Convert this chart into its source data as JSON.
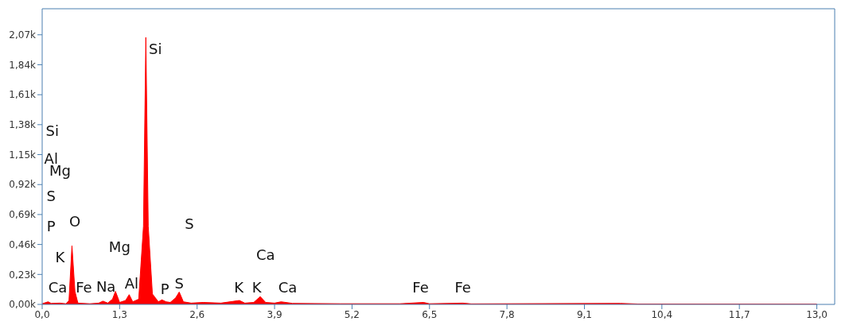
{
  "chart_data": {
    "type": "area",
    "x": [
      0,
      0.1,
      0.15,
      0.3,
      0.4,
      0.45,
      0.5,
      0.55,
      0.6,
      0.8,
      0.95,
      1.02,
      1.1,
      1.18,
      1.23,
      1.3,
      1.4,
      1.46,
      1.52,
      1.62,
      1.7,
      1.74,
      1.78,
      1.85,
      1.95,
      2.01,
      2.08,
      2.15,
      2.24,
      2.3,
      2.37,
      2.5,
      2.7,
      3.0,
      3.31,
      3.4,
      3.55,
      3.66,
      3.75,
      3.9,
      4.01,
      4.2,
      5.0,
      6.0,
      6.4,
      6.5,
      7.06,
      7.2,
      9.7,
      10.0,
      13.0
    ],
    "series": [
      {
        "color": "#ff0000",
        "values": [
          5,
          20,
          8,
          10,
          5,
          30,
          450,
          100,
          10,
          5,
          10,
          25,
          10,
          40,
          100,
          15,
          30,
          75,
          20,
          40,
          600,
          2050,
          600,
          80,
          20,
          35,
          20,
          15,
          50,
          95,
          20,
          10,
          15,
          10,
          30,
          10,
          15,
          60,
          15,
          10,
          20,
          8,
          5,
          5,
          15,
          5,
          10,
          4,
          8,
          3,
          2
        ]
      }
    ],
    "xlim": [
      0,
      13.3
    ],
    "xticks": [
      {
        "value": 0,
        "label": "0,0"
      },
      {
        "value": 1.3,
        "label": "1,3"
      },
      {
        "value": 2.6,
        "label": "2,6"
      },
      {
        "value": 3.9,
        "label": "3,9"
      },
      {
        "value": 5.2,
        "label": "5,2"
      },
      {
        "value": 6.5,
        "label": "6,5"
      },
      {
        "value": 7.8,
        "label": "7,8"
      },
      {
        "value": 9.1,
        "label": "9,1"
      },
      {
        "value": 10.4,
        "label": "10,4"
      },
      {
        "value": 11.7,
        "label": "11,7"
      },
      {
        "value": 13,
        "label": "13,0"
      }
    ],
    "ylim": [
      0,
      2270
    ],
    "yticks": [
      {
        "value": 0,
        "label": "0,00k"
      },
      {
        "value": 230,
        "label": "0,23k"
      },
      {
        "value": 460,
        "label": "0,46k"
      },
      {
        "value": 690,
        "label": "0,69k"
      },
      {
        "value": 920,
        "label": "0,92k"
      },
      {
        "value": 1150,
        "label": "1,15k"
      },
      {
        "value": 1380,
        "label": "1,38k"
      },
      {
        "value": 1610,
        "label": "1,61k"
      },
      {
        "value": 1840,
        "label": "1,84k"
      },
      {
        "value": 2070,
        "label": "2,07k"
      }
    ],
    "grid": false,
    "annotations": [
      "Si",
      "Si",
      "Al",
      "Mg",
      "S",
      "P",
      "O",
      "K",
      "Ca",
      "Fe",
      "Na",
      "Mg",
      "Al",
      "P",
      "S",
      "S",
      "K",
      "K",
      "Ca",
      "Ca",
      "Fe",
      "Fe"
    ]
  }
}
